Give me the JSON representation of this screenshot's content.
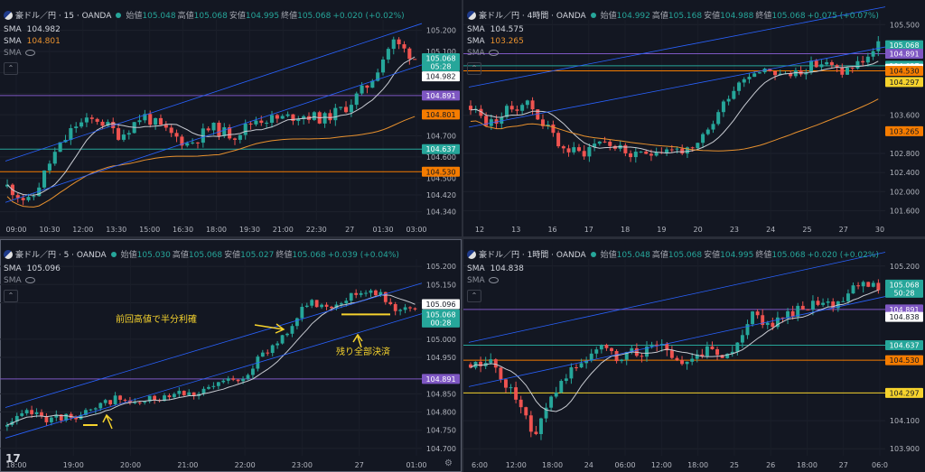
{
  "colors": {
    "up": "#26a69a",
    "down": "#ef5350",
    "sma_white": "#c8cbd2",
    "sma_orange": "#e8912e",
    "purple": "#7e57c2",
    "green": "#26a69a",
    "orange": "#f57c00",
    "yellow": "#f6d32d",
    "white": "#ffffff",
    "channel": "#2962ff"
  },
  "panels": [
    {
      "id": "p1",
      "header": {
        "title": "豪ドル／円 · 15 · OANDA",
        "o_label": "始値",
        "o": "105.048",
        "h_label": "高値",
        "h": "105.068",
        "l_label": "安値",
        "l": "104.995",
        "c_label": "終値",
        "c": "105.068",
        "chg": "+0.020 (+0.02%)"
      },
      "sma": [
        {
          "label": "SMA",
          "value": "104.982",
          "color": "#d1d4dc"
        },
        {
          "label": "SMA",
          "value": "104.801",
          "color": "#e8912e"
        }
      ],
      "sma3_label": "SMA",
      "y_range": [
        104.3,
        105.25
      ],
      "y_ticks": [
        "105.200",
        "105.100",
        "105.000",
        "104.900",
        "104.800",
        "104.700",
        "104.600",
        "104.500",
        "104.420",
        "104.340"
      ],
      "y_tick_vals": [
        105.2,
        105.1,
        105.0,
        104.9,
        104.8,
        104.7,
        104.6,
        104.5,
        104.42,
        104.34
      ],
      "x_ticks": [
        "09:00",
        "10:30",
        "12:00",
        "13:30",
        "15:00",
        "16:30",
        "18:00",
        "19:30",
        "21:00",
        "22:30",
        "27",
        "01:30",
        "03:00"
      ],
      "badges": [
        {
          "value": "105.068",
          "sub": "05:28",
          "y": 105.068,
          "bg": "#26a69a",
          "fg": "#ffffff"
        },
        {
          "value": "104.982",
          "y": 104.982,
          "bg": "#ffffff",
          "fg": "#131722"
        },
        {
          "value": "104.891",
          "y": 104.891,
          "bg": "#7e57c2",
          "fg": "#ffffff"
        },
        {
          "value": "104.801",
          "y": 104.801,
          "bg": "#f57c00",
          "fg": "#131722"
        },
        {
          "value": "104.637",
          "y": 104.637,
          "bg": "#26a69a",
          "fg": "#ffffff"
        },
        {
          "value": "104.530",
          "y": 104.53,
          "bg": "#f57c00",
          "fg": "#131722"
        }
      ],
      "hlines": [
        {
          "y": 104.891,
          "color": "#7e57c2"
        },
        {
          "y": 104.637,
          "color": "#26a69a"
        },
        {
          "y": 104.53,
          "color": "#f57c00"
        }
      ],
      "seed": 11,
      "start": 104.46,
      "end": 105.07,
      "n": 78,
      "vol": 0.028,
      "path": [
        104.46,
        104.38,
        104.6,
        104.75,
        104.78,
        104.7,
        104.8,
        104.72,
        104.66,
        104.74,
        104.7,
        104.78,
        104.78,
        104.8,
        104.78,
        104.84,
        104.95,
        105.15,
        105.07
      ]
    },
    {
      "id": "p2",
      "header": {
        "title": "豪ドル／円 · 4時間 · OANDA",
        "o_label": "始値",
        "o": "104.992",
        "h_label": "高値",
        "h": "105.168",
        "l_label": "安値",
        "l": "104.988",
        "c_label": "終値",
        "c": "105.068",
        "chg": "+0.075 (+0.07%)"
      },
      "sma": [
        {
          "label": "SMA",
          "value": "104.575",
          "color": "#d1d4dc"
        },
        {
          "label": "SMA",
          "value": "103.265",
          "color": "#e8912e"
        }
      ],
      "sma3_label": "SMA",
      "y_range": [
        101.4,
        105.6
      ],
      "y_ticks": [
        "105.500",
        "103.600",
        "102.800",
        "102.400",
        "102.000",
        "101.600"
      ],
      "y_tick_vals": [
        105.5,
        103.6,
        102.8,
        102.4,
        102.0,
        101.6
      ],
      "x_ticks": [
        "12",
        "13",
        "16",
        "17",
        "18",
        "19",
        "20",
        "23",
        "24",
        "25",
        "27",
        "30"
      ],
      "badges": [
        {
          "value": "105.068",
          "sub": "01:50:28",
          "y": 105.068,
          "bg": "#26a69a",
          "fg": "#ffffff"
        },
        {
          "value": "104.891",
          "y": 104.891,
          "bg": "#7e57c2",
          "fg": "#ffffff"
        },
        {
          "value": "104.637",
          "y": 104.637,
          "bg": "#26a69a",
          "fg": "#ffffff"
        },
        {
          "value": "104.575",
          "y": 104.575,
          "bg": "#ffffff",
          "fg": "#131722"
        },
        {
          "value": "104.530",
          "y": 104.53,
          "bg": "#f57c00",
          "fg": "#131722"
        },
        {
          "value": "104.297",
          "y": 104.297,
          "bg": "#f6d32d",
          "fg": "#131722"
        },
        {
          "value": "103.265",
          "y": 103.265,
          "bg": "#f57c00",
          "fg": "#131722"
        }
      ],
      "hlines": [
        {
          "y": 104.891,
          "color": "#7e57c2"
        },
        {
          "y": 104.637,
          "color": "#26a69a"
        },
        {
          "y": 104.53,
          "color": "#f57c00"
        }
      ],
      "seed": 23,
      "n": 80,
      "vol": 0.12,
      "path": [
        103.8,
        103.4,
        103.7,
        103.9,
        103.4,
        102.9,
        102.8,
        103.1,
        102.9,
        102.7,
        102.9,
        102.9,
        102.8,
        103.4,
        104.1,
        104.5,
        104.6,
        104.4,
        104.6,
        104.7,
        104.5,
        104.7,
        105.05
      ]
    },
    {
      "id": "p3",
      "header": {
        "title": "豪ドル／円 · 5 · OANDA",
        "o_label": "始値",
        "o": "105.030",
        "h_label": "高値",
        "h": "105.068",
        "l_label": "安値",
        "l": "105.027",
        "c_label": "終値",
        "c": "105.068",
        "chg": "+0.039 (+0.04%)"
      },
      "sma": [
        {
          "label": "SMA",
          "value": "105.096",
          "color": "#d1d4dc"
        }
      ],
      "sma3_label": "SMA",
      "y_range": [
        104.68,
        105.22
      ],
      "y_ticks": [
        "105.200",
        "105.150",
        "105.100",
        "105.000",
        "104.950",
        "104.850",
        "104.800",
        "104.750",
        "104.700"
      ],
      "y_tick_vals": [
        105.2,
        105.15,
        105.1,
        105.0,
        104.95,
        104.85,
        104.8,
        104.75,
        104.7
      ],
      "x_ticks": [
        "18:00",
        "19:00",
        "20:00",
        "21:00",
        "22:00",
        "23:00",
        "27",
        "01:00"
      ],
      "badges": [
        {
          "value": "105.096",
          "y": 105.096,
          "bg": "#ffffff",
          "fg": "#131722"
        },
        {
          "value": "105.068",
          "sub": "00:28",
          "y": 105.068,
          "bg": "#26a69a",
          "fg": "#ffffff"
        },
        {
          "value": "104.891",
          "y": 104.891,
          "bg": "#7e57c2",
          "fg": "#ffffff"
        }
      ],
      "hlines": [
        {
          "y": 104.891,
          "color": "#7e57c2"
        }
      ],
      "annotations": [
        {
          "text": "前回高値で半分利確"
        },
        {
          "text": "残り全部決済"
        }
      ],
      "seed": 37,
      "n": 84,
      "vol": 0.012,
      "path": [
        104.76,
        104.8,
        104.78,
        104.79,
        104.8,
        104.84,
        104.82,
        104.84,
        104.86,
        104.85,
        104.88,
        104.9,
        104.96,
        105.02,
        105.1,
        105.09,
        105.12,
        105.14,
        105.09,
        105.07
      ]
    },
    {
      "id": "p4",
      "header": {
        "title": "豪ドル／円 · 1時間 · OANDA",
        "o_label": "始値",
        "o": "105.048",
        "h_label": "高値",
        "h": "105.068",
        "l_label": "安値",
        "l": "104.995",
        "c_label": "終値",
        "c": "105.068",
        "chg": "+0.020 (+0.02%)"
      },
      "sma": [
        {
          "label": "SMA",
          "value": "104.838",
          "color": "#d1d4dc"
        }
      ],
      "sma3_label": "SMA",
      "y_range": [
        103.85,
        105.25
      ],
      "y_ticks": [
        "105.200",
        "104.100",
        "103.900"
      ],
      "y_tick_vals": [
        105.2,
        104.1,
        103.9
      ],
      "x_ticks": [
        "6:00",
        "12:00",
        "18:00",
        "24",
        "06:00",
        "12:00",
        "18:00",
        "25",
        "26",
        "18:00",
        "27",
        "06:0"
      ],
      "badges": [
        {
          "value": "105.068",
          "sub": "50:28",
          "y": 105.068,
          "bg": "#26a69a",
          "fg": "#ffffff"
        },
        {
          "value": "104.891",
          "y": 104.891,
          "bg": "#7e57c2",
          "fg": "#ffffff"
        },
        {
          "value": "104.838",
          "y": 104.838,
          "bg": "#ffffff",
          "fg": "#131722"
        },
        {
          "value": "104.637",
          "y": 104.637,
          "bg": "#26a69a",
          "fg": "#ffffff"
        },
        {
          "value": "104.530",
          "y": 104.53,
          "bg": "#f57c00",
          "fg": "#131722"
        },
        {
          "value": "104.297",
          "y": 104.297,
          "bg": "#f6d32d",
          "fg": "#131722"
        }
      ],
      "hlines": [
        {
          "y": 104.891,
          "color": "#7e57c2"
        },
        {
          "y": 104.637,
          "color": "#26a69a"
        },
        {
          "y": 104.53,
          "color": "#f57c00"
        },
        {
          "y": 104.297,
          "color": "#f6d32d"
        }
      ],
      "seed": 51,
      "n": 82,
      "vol": 0.045,
      "path": [
        104.5,
        104.5,
        104.3,
        104.0,
        104.3,
        104.5,
        104.6,
        104.55,
        104.6,
        104.62,
        104.5,
        104.6,
        104.55,
        104.85,
        104.78,
        104.88,
        104.92,
        104.9,
        105.1,
        105.07
      ]
    }
  ],
  "chart_data": [
    {
      "type": "line",
      "title": "豪ドル／円 · 15 · OANDA",
      "x": [
        "09:00",
        "10:30",
        "12:00",
        "13:30",
        "15:00",
        "16:30",
        "18:00",
        "19:30",
        "21:00",
        "22:30",
        "27",
        "01:30",
        "03:00"
      ],
      "ylim": [
        104.34,
        105.2
      ]
    },
    {
      "type": "line",
      "title": "豪ドル／円 · 4時間 · OANDA",
      "x": [
        "12",
        "13",
        "16",
        "17",
        "18",
        "19",
        "20",
        "23",
        "24",
        "25",
        "27",
        "30"
      ],
      "ylim": [
        101.6,
        105.5
      ]
    },
    {
      "type": "line",
      "title": "豪ドル／円 · 5 · OANDA",
      "x": [
        "18:00",
        "19:00",
        "20:00",
        "21:00",
        "22:00",
        "23:00",
        "27",
        "01:00"
      ],
      "ylim": [
        104.7,
        105.2
      ]
    },
    {
      "type": "line",
      "title": "豪ドル／円 · 1時間 · OANDA",
      "x": [
        "6:00",
        "12:00",
        "18:00",
        "24",
        "06:00",
        "12:00",
        "18:00",
        "25",
        "26",
        "18:00",
        "27",
        "06:0"
      ],
      "ylim": [
        103.9,
        105.2
      ]
    }
  ]
}
